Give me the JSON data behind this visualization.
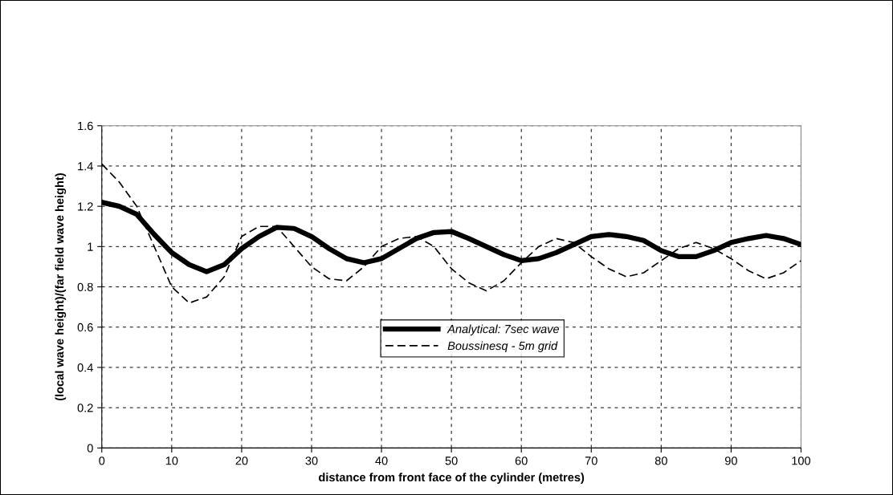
{
  "chart_data": {
    "type": "line",
    "xlabel": "distance from front face of the cylinder (metres)",
    "ylabel": "(local wave height)/(far field wave height)",
    "x": [
      0,
      2.5,
      5,
      7.5,
      10,
      12.5,
      15,
      17.5,
      20,
      22.5,
      25,
      27.5,
      30,
      32.5,
      35,
      37.5,
      40,
      42.5,
      45,
      47.5,
      50,
      52.5,
      55,
      57.5,
      60,
      62.5,
      65,
      67.5,
      70,
      72.5,
      75,
      77.5,
      80,
      82.5,
      85,
      87.5,
      90,
      92.5,
      95,
      97.5,
      100
    ],
    "series": [
      {
        "name": "Analytical: 7sec wave",
        "color": "#000000",
        "line_style": "solid",
        "values": [
          1.22,
          1.2,
          1.16,
          1.06,
          0.97,
          0.91,
          0.875,
          0.91,
          0.99,
          1.05,
          1.095,
          1.09,
          1.05,
          0.99,
          0.94,
          0.92,
          0.94,
          0.99,
          1.04,
          1.07,
          1.075,
          1.04,
          1.0,
          0.96,
          0.93,
          0.94,
          0.97,
          1.01,
          1.05,
          1.06,
          1.05,
          1.03,
          0.98,
          0.95,
          0.95,
          0.98,
          1.02,
          1.04,
          1.055,
          1.04,
          1.01
        ]
      },
      {
        "name": "Boussinesq - 5m grid",
        "color": "#000000",
        "line_style": "dashed",
        "values": [
          1.41,
          1.32,
          1.2,
          1.0,
          0.8,
          0.72,
          0.75,
          0.85,
          1.05,
          1.1,
          1.1,
          1.0,
          0.9,
          0.84,
          0.83,
          0.9,
          1.0,
          1.04,
          1.05,
          1.0,
          0.89,
          0.82,
          0.78,
          0.83,
          0.92,
          1.0,
          1.04,
          1.02,
          0.95,
          0.89,
          0.85,
          0.87,
          0.93,
          0.99,
          1.02,
          0.99,
          0.94,
          0.88,
          0.84,
          0.87,
          0.93
        ]
      }
    ],
    "xlim": [
      0,
      100
    ],
    "xticks": [
      0,
      10,
      20,
      30,
      40,
      50,
      60,
      70,
      80,
      90,
      100
    ],
    "ylim": [
      0,
      1.6
    ],
    "yticks": [
      0,
      0.2,
      0.4,
      0.6,
      0.8,
      1,
      1.2,
      1.4,
      1.6
    ],
    "grid": true,
    "legend": "center",
    "marker": "none"
  }
}
